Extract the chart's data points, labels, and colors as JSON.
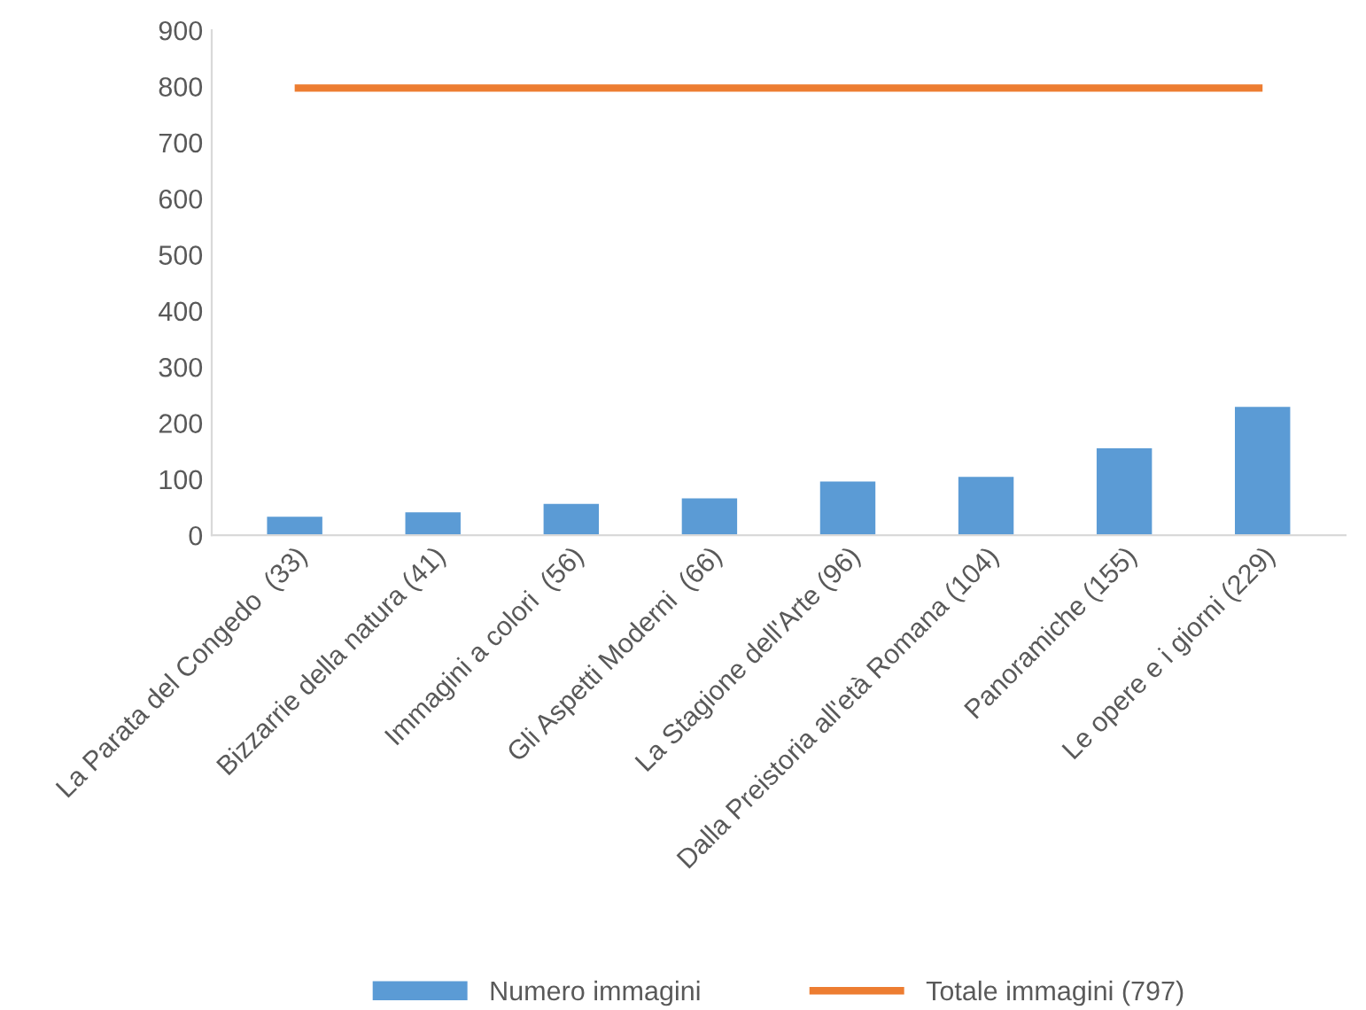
{
  "chart_data": {
    "type": "bar",
    "categories": [
      "La Parata del Congedo  (33)",
      "Bizzarrie della natura (41)",
      "Immagini a colori  (56)",
      "Gli Aspetti Moderni  (66)",
      "La Stagione dell'Arte (96)",
      "Dalla Preistoria all'età Romana (104)",
      "Panoramiche (155)",
      "Le opere e i giorni (229)"
    ],
    "series": [
      {
        "name": "Numero immagini",
        "color": "#5b9bd5",
        "values": [
          33,
          41,
          56,
          66,
          96,
          104,
          155,
          229
        ]
      },
      {
        "name": "Totale immagini (797)",
        "type": "line",
        "color": "#ed7d31",
        "values": [
          797,
          797,
          797,
          797,
          797,
          797,
          797,
          797
        ]
      }
    ],
    "ylim": [
      0,
      900
    ],
    "yticks": [
      0,
      100,
      200,
      300,
      400,
      500,
      600,
      700,
      800,
      900
    ],
    "grid": false,
    "legend": "bottom"
  }
}
